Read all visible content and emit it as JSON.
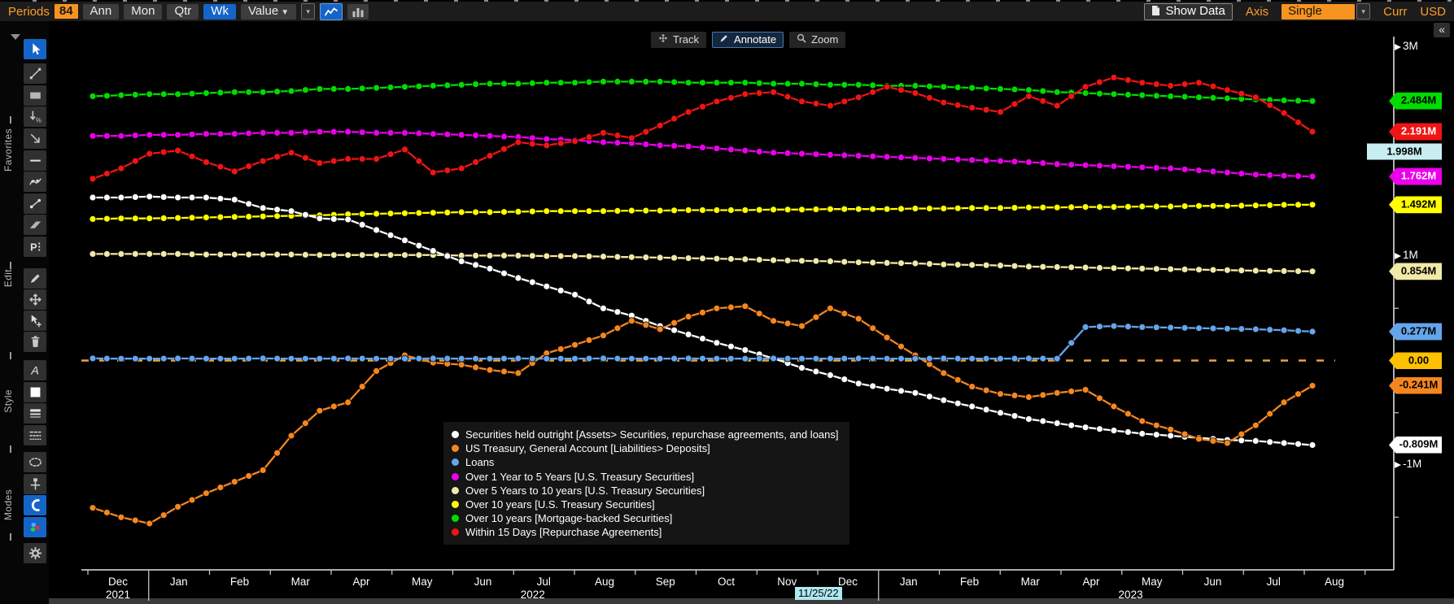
{
  "toolbar": {
    "periods_label": "Periods",
    "periods_value": "84",
    "freq_buttons": [
      "Ann",
      "Mon",
      "Qtr",
      "Wk"
    ],
    "freq_selected": "Wk",
    "value_dropdown": "Value",
    "show_data": "Show Data",
    "axis_label": "Axis",
    "axis_mode": "Single",
    "curr_label": "Curr",
    "currency": "USD"
  },
  "chart_controls": {
    "collapse": "«",
    "items": [
      {
        "label": "Track",
        "icon": "track-icon",
        "active": false
      },
      {
        "label": "Annotate",
        "icon": "annotate-icon",
        "active": true
      },
      {
        "label": "Zoom",
        "icon": "zoom-icon",
        "active": false
      }
    ]
  },
  "sidebar": {
    "groups": [
      "Favorites",
      "Edit",
      "Style",
      "Modes"
    ],
    "tools": [
      {
        "name": "select-cursor",
        "selected": true
      },
      {
        "name": "trendline-tool",
        "selected": false
      },
      {
        "name": "rectangle-tool",
        "selected": false
      },
      {
        "name": "fib-retracement-tool",
        "selected": false
      },
      {
        "name": "arrow-tool",
        "selected": false
      },
      {
        "name": "horizontal-line-tool",
        "selected": false
      },
      {
        "name": "polyline-tool",
        "selected": false
      },
      {
        "name": "segment-tool",
        "selected": false
      },
      {
        "name": "channel-tool",
        "selected": false
      },
      {
        "name": "pitchfork-tool",
        "selected": false
      },
      {
        "name": "pencil-tool",
        "selected": false
      },
      {
        "name": "move-tool",
        "selected": false
      },
      {
        "name": "multi-select-tool",
        "selected": false
      },
      {
        "name": "delete-tool",
        "selected": false
      },
      {
        "name": "text-tool",
        "selected": false
      },
      {
        "name": "fill-style-tool",
        "selected": false
      },
      {
        "name": "line-width-tool",
        "selected": false
      },
      {
        "name": "line-dash-tool",
        "selected": false
      },
      {
        "name": "lasso-tool",
        "selected": false
      },
      {
        "name": "anchor-tool",
        "selected": false
      },
      {
        "name": "magnet-tool",
        "selected": true
      },
      {
        "name": "color-mode-tool",
        "selected": true
      },
      {
        "name": "settings-tool",
        "selected": false
      }
    ]
  },
  "chart_data": {
    "type": "line",
    "x_unit": "week",
    "x_step_per_point": 2,
    "x_weeks_total": 86,
    "months": [
      "Dec",
      "Jan",
      "Feb",
      "Mar",
      "Apr",
      "May",
      "Jun",
      "Jul",
      "Aug",
      "Sep",
      "Oct",
      "Nov",
      "Dec",
      "Jan",
      "Feb",
      "Mar",
      "Apr",
      "May",
      "Jun",
      "Jul",
      "Aug"
    ],
    "years": [
      {
        "label": "2021",
        "month_index": 0
      },
      {
        "label": "2022",
        "month_index": 6.82
      },
      {
        "label": "2023",
        "month_index": 16.65
      }
    ],
    "tracked_date": "11/25/22",
    "y_axis": {
      "unit": "M",
      "ticks": [
        {
          "label": "3M",
          "value": 3
        },
        {
          "label": "1M",
          "value": 1
        },
        {
          "label": "-1M",
          "value": -1
        }
      ],
      "minor_ticks": [
        2.5,
        2.0,
        1.5,
        0.5,
        -0.5,
        -1.5
      ],
      "legend_position": "bottom-center-panel",
      "grid": false
    },
    "zero_line": {
      "value": 0.0,
      "style": "dashed",
      "color": "#e8a33d",
      "label": "0.00"
    },
    "tracker_tag": {
      "text": "1.998M",
      "value": 1.998,
      "bg": "#c9eef2",
      "fg": "#000000"
    },
    "zero_tag": {
      "text": "0.00",
      "value": 0.0,
      "bg": "#ffc000",
      "fg": "#000000"
    },
    "draw_order": [
      3,
      6,
      7,
      4,
      5,
      0,
      1,
      2
    ],
    "series": [
      {
        "name": "Securities held outright [Assets> Securities, repurchase agreements, and loans]",
        "color": "#ffffff",
        "tag": {
          "text": "-0.809M",
          "value": -0.809,
          "bg": "#ffffff",
          "fg": "#000000"
        },
        "values": [
          1.56,
          1.56,
          1.57,
          1.56,
          1.56,
          1.54,
          1.46,
          1.43,
          1.36,
          1.35,
          1.25,
          1.15,
          1.05,
          0.95,
          0.88,
          0.79,
          0.71,
          0.63,
          0.5,
          0.43,
          0.33,
          0.25,
          0.17,
          0.1,
          0.02,
          -0.07,
          -0.14,
          -0.22,
          -0.27,
          -0.31,
          -0.38,
          -0.44,
          -0.5,
          -0.56,
          -0.6,
          -0.64,
          -0.67,
          -0.7,
          -0.72,
          -0.74,
          -0.76,
          -0.77,
          -0.79,
          -0.809
        ]
      },
      {
        "name": "US Treasury, General Account [Liabilities> Deposits]",
        "color": "#f5861f",
        "tag": {
          "text": "-0.241M",
          "value": -0.241,
          "bg": "#f5861f",
          "fg": "#000000"
        },
        "values": [
          -1.41,
          -1.5,
          -1.56,
          -1.4,
          -1.27,
          -1.16,
          -1.05,
          -0.72,
          -0.48,
          -0.4,
          -0.1,
          0.05,
          -0.02,
          -0.04,
          -0.09,
          -0.12,
          0.07,
          0.15,
          0.24,
          0.38,
          0.3,
          0.42,
          0.5,
          0.52,
          0.38,
          0.33,
          0.5,
          0.4,
          0.22,
          0.05,
          -0.12,
          -0.25,
          -0.32,
          -0.35,
          -0.31,
          -0.28,
          -0.44,
          -0.58,
          -0.66,
          -0.75,
          -0.79,
          -0.62,
          -0.4,
          -0.241
        ]
      },
      {
        "name": "Loans",
        "color": "#64a5ec",
        "tag": {
          "text": "0.277M",
          "value": 0.277,
          "bg": "#64a5ec",
          "fg": "#000000"
        },
        "values": [
          0.02,
          0.018,
          0.018,
          0.02,
          0.018,
          0.018,
          0.02,
          0.018,
          0.018,
          0.02,
          0.018,
          0.018,
          0.02,
          0.018,
          0.018,
          0.02,
          0.018,
          0.018,
          0.02,
          0.018,
          0.018,
          0.02,
          0.018,
          0.018,
          0.02,
          0.018,
          0.018,
          0.02,
          0.018,
          0.018,
          0.02,
          0.018,
          0.018,
          0.02,
          0.018,
          0.32,
          0.33,
          0.32,
          0.315,
          0.31,
          0.305,
          0.3,
          0.29,
          0.277
        ]
      },
      {
        "name": "Over 1 Year to 5 Years [U.S. Treasury Securities]",
        "color": "#ea00ea",
        "tag": {
          "text": "1.762M",
          "value": 1.762,
          "bg": "#ea00ea",
          "fg": "#ffffff"
        },
        "values": [
          2.15,
          2.15,
          2.16,
          2.16,
          2.17,
          2.17,
          2.18,
          2.18,
          2.19,
          2.19,
          2.18,
          2.18,
          2.17,
          2.16,
          2.15,
          2.14,
          2.12,
          2.11,
          2.09,
          2.08,
          2.06,
          2.05,
          2.03,
          2.01,
          1.99,
          1.98,
          1.97,
          1.96,
          1.95,
          1.94,
          1.93,
          1.92,
          1.91,
          1.9,
          1.88,
          1.87,
          1.86,
          1.85,
          1.84,
          1.82,
          1.8,
          1.78,
          1.77,
          1.762
        ]
      },
      {
        "name": "Over 5 Years to 10 years [U.S. Treasury Securities]",
        "color": "#f2e9a8",
        "tag": {
          "text": "0.854M",
          "value": 0.854,
          "bg": "#f2e9a8",
          "fg": "#000000"
        },
        "values": [
          1.02,
          1.02,
          1.02,
          1.02,
          1.015,
          1.015,
          1.015,
          1.015,
          1.01,
          1.01,
          1.01,
          1.01,
          1.01,
          1.005,
          1.005,
          1.005,
          1.0,
          1.0,
          0.995,
          0.99,
          0.985,
          0.98,
          0.975,
          0.97,
          0.96,
          0.955,
          0.95,
          0.94,
          0.935,
          0.93,
          0.92,
          0.915,
          0.91,
          0.9,
          0.895,
          0.89,
          0.885,
          0.88,
          0.875,
          0.87,
          0.865,
          0.86,
          0.857,
          0.854
        ]
      },
      {
        "name": "Over 10 years [U.S. Treasury Securities]",
        "color": "#ffff00",
        "tag": {
          "text": "1.492M",
          "value": 1.492,
          "bg": "#ffff00",
          "fg": "#000000"
        },
        "values": [
          1.355,
          1.36,
          1.36,
          1.365,
          1.37,
          1.375,
          1.38,
          1.385,
          1.39,
          1.4,
          1.405,
          1.41,
          1.415,
          1.42,
          1.42,
          1.425,
          1.43,
          1.43,
          1.43,
          1.435,
          1.435,
          1.44,
          1.44,
          1.44,
          1.445,
          1.445,
          1.45,
          1.45,
          1.45,
          1.455,
          1.455,
          1.46,
          1.46,
          1.465,
          1.465,
          1.47,
          1.47,
          1.475,
          1.475,
          1.48,
          1.48,
          1.485,
          1.49,
          1.492
        ]
      },
      {
        "name": "Over 10 years [Mortgage-backed Securities]",
        "color": "#00dc00",
        "tag": {
          "text": "2.484M",
          "value": 2.484,
          "bg": "#00dc00",
          "fg": "#000000"
        },
        "values": [
          2.53,
          2.54,
          2.55,
          2.55,
          2.56,
          2.57,
          2.57,
          2.58,
          2.6,
          2.6,
          2.61,
          2.62,
          2.63,
          2.64,
          2.65,
          2.65,
          2.66,
          2.66,
          2.67,
          2.67,
          2.67,
          2.66,
          2.66,
          2.66,
          2.65,
          2.65,
          2.64,
          2.64,
          2.63,
          2.63,
          2.62,
          2.61,
          2.6,
          2.59,
          2.57,
          2.56,
          2.55,
          2.54,
          2.53,
          2.52,
          2.51,
          2.5,
          2.49,
          2.484
        ]
      },
      {
        "name": "Within 15 Days [Repurchase Agreements]",
        "color": "#f01414",
        "tag": {
          "text": "2.191M",
          "value": 2.191,
          "bg": "#f01414",
          "fg": "#ffffff"
        },
        "values": [
          1.74,
          1.84,
          1.98,
          2.01,
          1.9,
          1.81,
          1.91,
          1.99,
          1.89,
          1.93,
          1.93,
          2.02,
          1.8,
          1.84,
          1.96,
          2.09,
          2.06,
          2.1,
          2.18,
          2.13,
          2.25,
          2.38,
          2.48,
          2.55,
          2.57,
          2.48,
          2.44,
          2.52,
          2.62,
          2.56,
          2.47,
          2.42,
          2.38,
          2.53,
          2.44,
          2.62,
          2.71,
          2.66,
          2.63,
          2.66,
          2.59,
          2.52,
          2.37,
          2.191
        ]
      }
    ]
  }
}
